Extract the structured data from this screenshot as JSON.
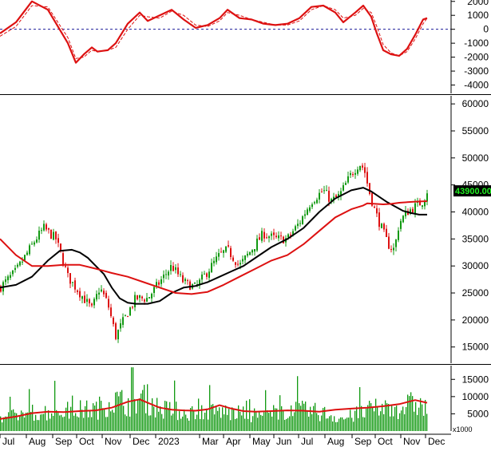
{
  "colors": {
    "background": "#ffffff",
    "axis": "#000000",
    "grid_zero": "#1a1a99",
    "macd": "#dd1111",
    "signal": "#dd1111",
    "candle_up": "#119911",
    "candle_down": "#dd1111",
    "ma_fast": "#dd1111",
    "ma_slow": "#000000",
    "volume": "#119911",
    "volume_ma": "#dd1111",
    "last_price_bg": "#000000",
    "last_price_fg": "#22ee22"
  },
  "chart_data": [
    {
      "type": "line",
      "panel": "indicator",
      "ylim": [
        -4600,
        2100
      ],
      "y_ticks": [
        2000,
        1000,
        0,
        -1000,
        -2000,
        -3000,
        -4000
      ],
      "y_tick_labels": [
        "2000",
        "1000",
        "0",
        "-1000",
        "-2000",
        "-3000",
        "-4000"
      ],
      "zero_line": true,
      "series": [
        {
          "role": "line",
          "x": [
            0,
            20,
            40,
            60,
            85,
            95,
            105,
            115,
            122,
            135,
            145,
            160,
            175,
            185,
            200,
            215,
            230,
            245,
            260,
            275,
            285,
            300,
            315,
            330,
            345,
            360,
            375,
            390,
            405,
            420,
            430,
            445,
            455,
            465,
            472,
            480,
            490,
            500,
            510,
            520,
            530,
            535
          ],
          "values": [
            -300,
            500,
            2000,
            1400,
            -1000,
            -2400,
            -1800,
            -1300,
            -1600,
            -1500,
            -1000,
            400,
            1200,
            600,
            1000,
            1400,
            700,
            100,
            300,
            800,
            1400,
            800,
            700,
            400,
            300,
            400,
            800,
            1600,
            1700,
            1200,
            500,
            1200,
            1700,
            900,
            -300,
            -1500,
            -1800,
            -1900,
            -1400,
            -400,
            700,
            800
          ]
        },
        {
          "role": "signal",
          "x": [
            0,
            20,
            40,
            60,
            85,
            95,
            105,
            115,
            122,
            135,
            145,
            160,
            175,
            185,
            200,
            215,
            230,
            245,
            260,
            275,
            285,
            300,
            315,
            330,
            345,
            360,
            375,
            390,
            405,
            420,
            430,
            445,
            455,
            465,
            472,
            480,
            490,
            500,
            510,
            520,
            530,
            535
          ],
          "values": [
            -500,
            200,
            1700,
            1600,
            -600,
            -2100,
            -2000,
            -1500,
            -1600,
            -1500,
            -1300,
            0,
            1000,
            900,
            800,
            1300,
            1000,
            300,
            200,
            600,
            1200,
            1000,
            700,
            500,
            300,
            300,
            600,
            1400,
            1700,
            1400,
            800,
            1000,
            1500,
            1200,
            200,
            -1100,
            -1700,
            -1900,
            -1600,
            -700,
            400,
            800
          ]
        }
      ]
    },
    {
      "type": "candlestick",
      "panel": "price",
      "ylim": [
        12000,
        61500
      ],
      "y_ticks": [
        60000,
        55000,
        50000,
        45000,
        40000,
        35000,
        30000,
        25000,
        20000,
        15000
      ],
      "y_tick_labels": [
        "60000",
        "55000",
        "50000",
        "45000",
        "40000",
        "35000",
        "30000",
        "25000",
        "20000",
        "15000"
      ],
      "last_price": 43900,
      "last_price_label": "43900.00",
      "close_path": {
        "x": [
          0,
          20,
          45,
          55,
          70,
          85,
          95,
          105,
          115,
          125,
          135,
          145,
          155,
          170,
          185,
          200,
          215,
          230,
          245,
          260,
          275,
          285,
          300,
          315,
          330,
          345,
          360,
          375,
          390,
          405,
          415,
          425,
          440,
          450,
          456,
          462,
          470,
          478,
          486,
          494,
          500,
          510,
          520,
          530,
          535
        ],
        "values": [
          26000,
          29000,
          35000,
          37000,
          35000,
          28000,
          26000,
          24000,
          22000,
          26000,
          23000,
          17000,
          20000,
          24000,
          24000,
          27000,
          30000,
          27000,
          26000,
          29000,
          32000,
          33000,
          30000,
          33000,
          36000,
          35000,
          35000,
          38000,
          42000,
          44000,
          42000,
          43000,
          47000,
          49000,
          48000,
          44000,
          40000,
          37000,
          34000,
          33000,
          38000,
          40000,
          41000,
          42000,
          43900
        ]
      },
      "ma_fast": {
        "x": [
          0,
          20,
          40,
          60,
          80,
          100,
          120,
          140,
          160,
          180,
          200,
          220,
          240,
          260,
          280,
          300,
          320,
          340,
          360,
          380,
          400,
          420,
          440,
          455,
          460,
          470,
          480,
          490,
          500,
          510,
          520,
          535
        ],
        "values": [
          35000,
          32000,
          30000,
          30000,
          30200,
          30200,
          29500,
          28700,
          28000,
          27000,
          26000,
          25000,
          24800,
          25200,
          26500,
          28000,
          29500,
          31000,
          32000,
          34000,
          36500,
          39000,
          40500,
          41200,
          41600,
          41500,
          41400,
          41500,
          41700,
          41800,
          41900,
          42000
        ]
      },
      "ma_slow": {
        "x": [
          0,
          20,
          40,
          60,
          75,
          90,
          100,
          110,
          120,
          130,
          140,
          150,
          160,
          170,
          185,
          200,
          215,
          230,
          245,
          260,
          275,
          290,
          305,
          320,
          340,
          360,
          380,
          400,
          420,
          440,
          455,
          465,
          475,
          485,
          495,
          505,
          515,
          525,
          535
        ],
        "values": [
          26000,
          26500,
          28000,
          31000,
          32800,
          33000,
          32500,
          31500,
          30000,
          28500,
          26000,
          24000,
          23200,
          23000,
          23000,
          23500,
          25000,
          26000,
          26300,
          27000,
          28000,
          29000,
          30000,
          31500,
          33500,
          35000,
          37000,
          40000,
          42500,
          44000,
          44500,
          43800,
          42800,
          41800,
          41000,
          40200,
          39800,
          39500,
          39500
        ]
      }
    },
    {
      "type": "bar",
      "panel": "volume",
      "ylim": [
        0,
        19000
      ],
      "y_ticks": [
        15000,
        10000,
        5000
      ],
      "y_tick_labels": [
        "15000",
        "10000",
        "5000"
      ],
      "y_multiplier_label": "x1000",
      "volume_level": {
        "x": [
          0,
          40,
          80,
          120,
          140,
          160,
          180,
          200,
          240,
          270,
          300,
          330,
          360,
          400,
          430,
          460,
          480,
          500,
          520,
          535
        ],
        "values": [
          4000,
          6000,
          6500,
          7000,
          10000,
          9000,
          11000,
          7000,
          6000,
          6500,
          5500,
          5000,
          7000,
          6000,
          4000,
          6500,
          7500,
          7500,
          9000,
          7000
        ]
      },
      "volume_ma": {
        "x": [
          0,
          20,
          40,
          60,
          80,
          100,
          120,
          140,
          160,
          175,
          185,
          200,
          215,
          230,
          245,
          260,
          275,
          290,
          305,
          320,
          340,
          360,
          380,
          400,
          420,
          440,
          460,
          480,
          500,
          520,
          535
        ],
        "values": [
          3500,
          4200,
          5200,
          5600,
          5500,
          5800,
          6000,
          6800,
          8500,
          9200,
          8200,
          6800,
          6200,
          6000,
          5900,
          6300,
          7500,
          6500,
          5800,
          5600,
          5800,
          6000,
          5900,
          5600,
          6200,
          6500,
          6800,
          7200,
          7800,
          9000,
          8200
        ]
      }
    }
  ],
  "x_axis": {
    "labels": [
      "Jul",
      "Aug",
      "Sep",
      "Oct",
      "Nov",
      "Dec",
      "2023",
      "Mar",
      "Apr",
      "May",
      "Jun",
      "Jul",
      "Aug",
      "Sep",
      "Oct",
      "Nov",
      "Dec"
    ],
    "positions": [
      0,
      33,
      66,
      96,
      128,
      163,
      195,
      250,
      280,
      313,
      343,
      374,
      407,
      441,
      470,
      502,
      533
    ]
  }
}
